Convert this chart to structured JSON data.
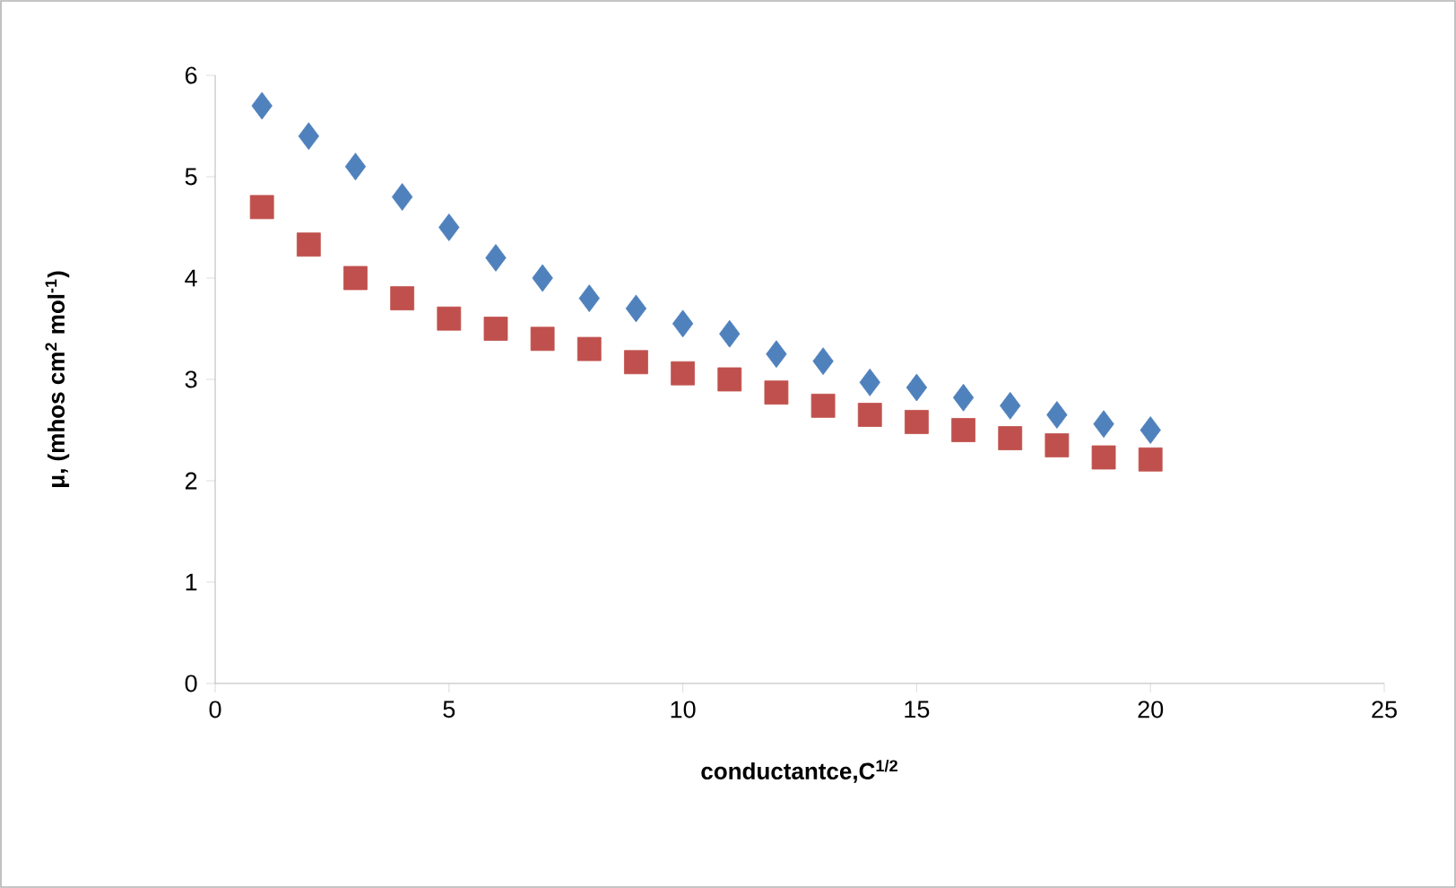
{
  "chart_data": {
    "type": "scatter",
    "xlabel": "conductantce,C$^{1/2}$",
    "ylabel": "μ, (mhos cm$^{2}$ mol$^{-1}$)",
    "x": [
      1,
      2,
      3,
      4,
      5,
      6,
      7,
      8,
      9,
      10,
      11,
      12,
      13,
      14,
      15,
      16,
      17,
      18,
      19,
      20
    ],
    "series": [
      {
        "color": "#4f81bd",
        "marker": "diamond",
        "values": [
          5.7,
          5.4,
          5.1,
          4.8,
          4.5,
          4.2,
          4.0,
          3.8,
          3.7,
          3.55,
          3.45,
          3.25,
          3.18,
          2.97,
          2.92,
          2.82,
          2.74,
          2.65,
          2.56,
          2.5
        ]
      },
      {
        "color": "#c0504d",
        "marker": "square",
        "values": [
          4.7,
          4.33,
          4.0,
          3.8,
          3.6,
          3.5,
          3.4,
          3.3,
          3.17,
          3.06,
          3.0,
          2.87,
          2.74,
          2.65,
          2.58,
          2.5,
          2.42,
          2.35,
          2.23,
          2.21
        ]
      }
    ],
    "xlim": [
      0,
      25
    ],
    "ylim": [
      0,
      6
    ],
    "xticks": [
      0,
      5,
      10,
      15,
      20,
      25
    ],
    "yticks": [
      0,
      1,
      2,
      3,
      4,
      5,
      6
    ],
    "grid": false
  }
}
